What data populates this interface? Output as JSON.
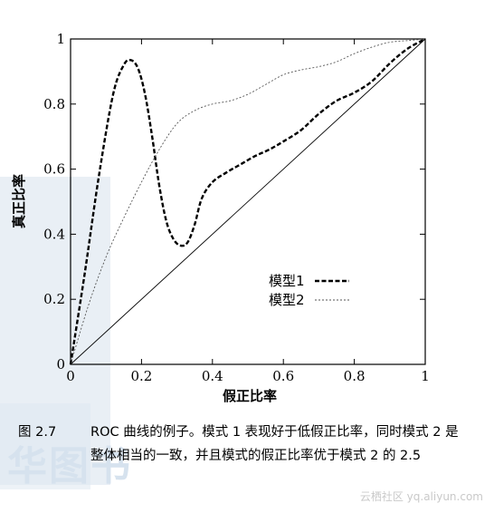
{
  "watermark": {
    "big_text": "华图书",
    "credit": "云栖社区 yq.aliyun.com"
  },
  "caption": {
    "number": "图 2.7",
    "text": "ROC 曲线的例子。模式 1 表现好于低假正比率，同时模式 2 是整体相当的一致，并且模式的假正比率优于模式 2 的 2.5"
  },
  "chart_data": {
    "type": "line",
    "title": "",
    "xlabel": "假正比率",
    "ylabel": "真正比率",
    "xlim": [
      0,
      1
    ],
    "ylim": [
      0,
      1
    ],
    "x_ticks": [
      0,
      0.2,
      0.4,
      0.6,
      0.8,
      1
    ],
    "x_tick_labels": [
      "0",
      "0.2",
      "0.4",
      "0.6",
      "0.8",
      "1"
    ],
    "y_ticks": [
      0,
      0.2,
      0.4,
      0.6,
      0.8,
      1
    ],
    "y_tick_labels": [
      "0",
      "0.2",
      "0.4",
      "0.6",
      "0.8",
      "1"
    ],
    "grid": false,
    "legend_position": "center-right",
    "series": [
      {
        "name": "模型1",
        "style": "bold-dashed",
        "color": "#000000",
        "x": [
          0,
          0.04,
          0.08,
          0.12,
          0.15,
          0.17,
          0.19,
          0.21,
          0.23,
          0.25,
          0.27,
          0.29,
          0.31,
          0.33,
          0.35,
          0.37,
          0.4,
          0.44,
          0.48,
          0.52,
          0.56,
          0.6,
          0.65,
          0.7,
          0.75,
          0.8,
          0.85,
          0.9,
          0.95,
          1.0
        ],
        "y": [
          0,
          0.28,
          0.58,
          0.83,
          0.92,
          0.935,
          0.91,
          0.83,
          0.7,
          0.55,
          0.44,
          0.385,
          0.365,
          0.375,
          0.43,
          0.51,
          0.56,
          0.59,
          0.615,
          0.64,
          0.66,
          0.685,
          0.72,
          0.77,
          0.81,
          0.835,
          0.87,
          0.925,
          0.97,
          1.0
        ]
      },
      {
        "name": "模型2",
        "style": "thin-dotted",
        "color": "#555555",
        "x": [
          0,
          0.05,
          0.1,
          0.15,
          0.2,
          0.25,
          0.3,
          0.35,
          0.4,
          0.45,
          0.5,
          0.55,
          0.6,
          0.65,
          0.7,
          0.75,
          0.8,
          0.85,
          0.9,
          0.95,
          1.0
        ],
        "y": [
          0,
          0.18,
          0.33,
          0.45,
          0.56,
          0.66,
          0.74,
          0.78,
          0.8,
          0.81,
          0.83,
          0.86,
          0.89,
          0.905,
          0.915,
          0.93,
          0.955,
          0.975,
          0.99,
          0.995,
          1.0
        ]
      },
      {
        "name": "",
        "style": "thin-solid",
        "color": "#000000",
        "x": [
          0,
          1
        ],
        "y": [
          0,
          1
        ]
      }
    ]
  }
}
